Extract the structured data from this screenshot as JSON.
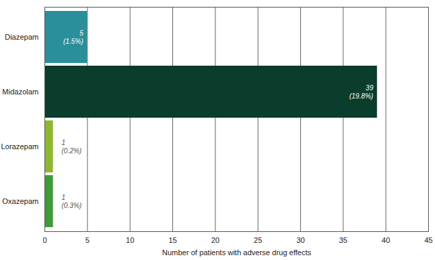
{
  "chart_data": {
    "type": "bar",
    "orientation": "horizontal",
    "categories": [
      "Diazepam",
      "Midazolam",
      "Lorazepam",
      "Oxazepam"
    ],
    "values": [
      5,
      39,
      1,
      1
    ],
    "value_labels": [
      "5\n(1.5%)",
      "39\n(19.8%)",
      "1\n(0.2%)",
      "1\n(0.3%)"
    ],
    "colors": [
      "#2a8f9a",
      "#0a3d2c",
      "#8db82f",
      "#3f9a3a"
    ],
    "xlabel": "Number of patients with adverse drug effects",
    "xlim": [
      0,
      45
    ],
    "xticks": [
      0,
      5,
      10,
      15,
      20,
      25,
      30,
      35,
      40,
      45
    ],
    "grid": true,
    "data_labels": true
  }
}
